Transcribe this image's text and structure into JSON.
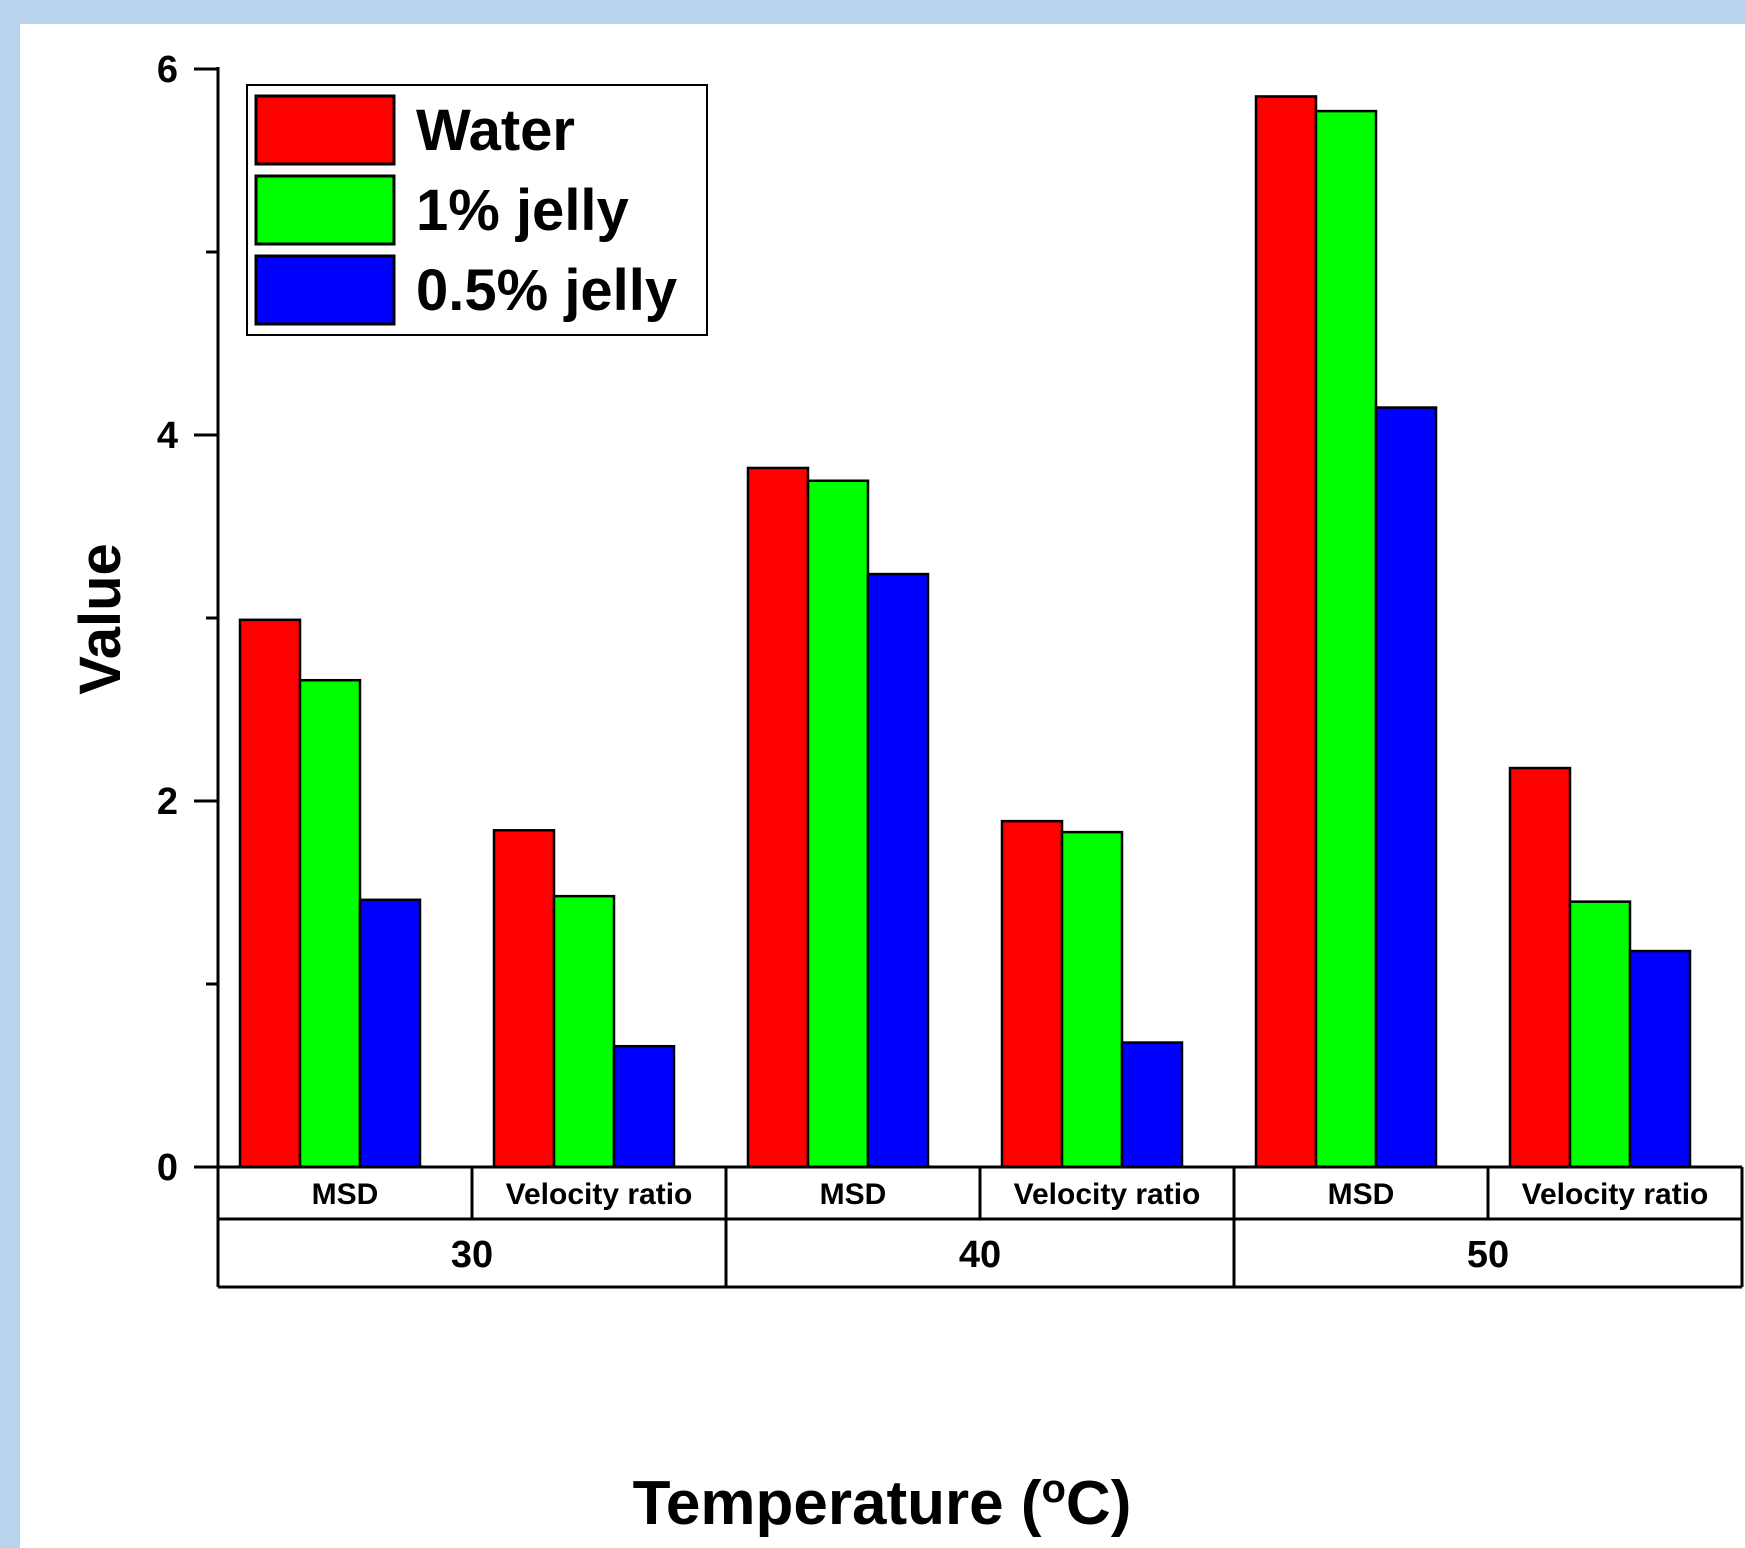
{
  "chart_data": {
    "type": "bar",
    "groups": [
      {
        "label": "30",
        "categories": [
          "MSD",
          "Velocity ratio"
        ]
      },
      {
        "label": "40",
        "categories": [
          "MSD",
          "Velocity ratio"
        ]
      },
      {
        "label": "50",
        "categories": [
          "MSD",
          "Velocity ratio"
        ]
      }
    ],
    "categories": [
      "30 MSD",
      "30 Velocity ratio",
      "40 MSD",
      "40 Velocity ratio",
      "50 MSD",
      "50 Velocity ratio"
    ],
    "series": [
      {
        "name": "Water",
        "color": "#ff0000",
        "values": [
          2.99,
          1.84,
          3.82,
          1.89,
          5.85,
          2.18
        ]
      },
      {
        "name": "1% jelly",
        "color": "#00ff00",
        "values": [
          2.66,
          1.48,
          3.75,
          1.83,
          5.77,
          1.45
        ]
      },
      {
        "name": "0.5% jelly",
        "color": "#0000ff",
        "values": [
          1.46,
          0.66,
          3.24,
          0.68,
          4.15,
          1.18
        ]
      }
    ],
    "xlabel_text": "Temperature (",
    "xlabel_sup": "o",
    "xlabel_tail": "C)",
    "ylabel": "Value",
    "ylim": [
      0,
      6
    ],
    "yticks": [
      0,
      2,
      4,
      6
    ],
    "yticks_minor": [
      1,
      3,
      5
    ],
    "legend_position": "top-left",
    "grid": false
  }
}
